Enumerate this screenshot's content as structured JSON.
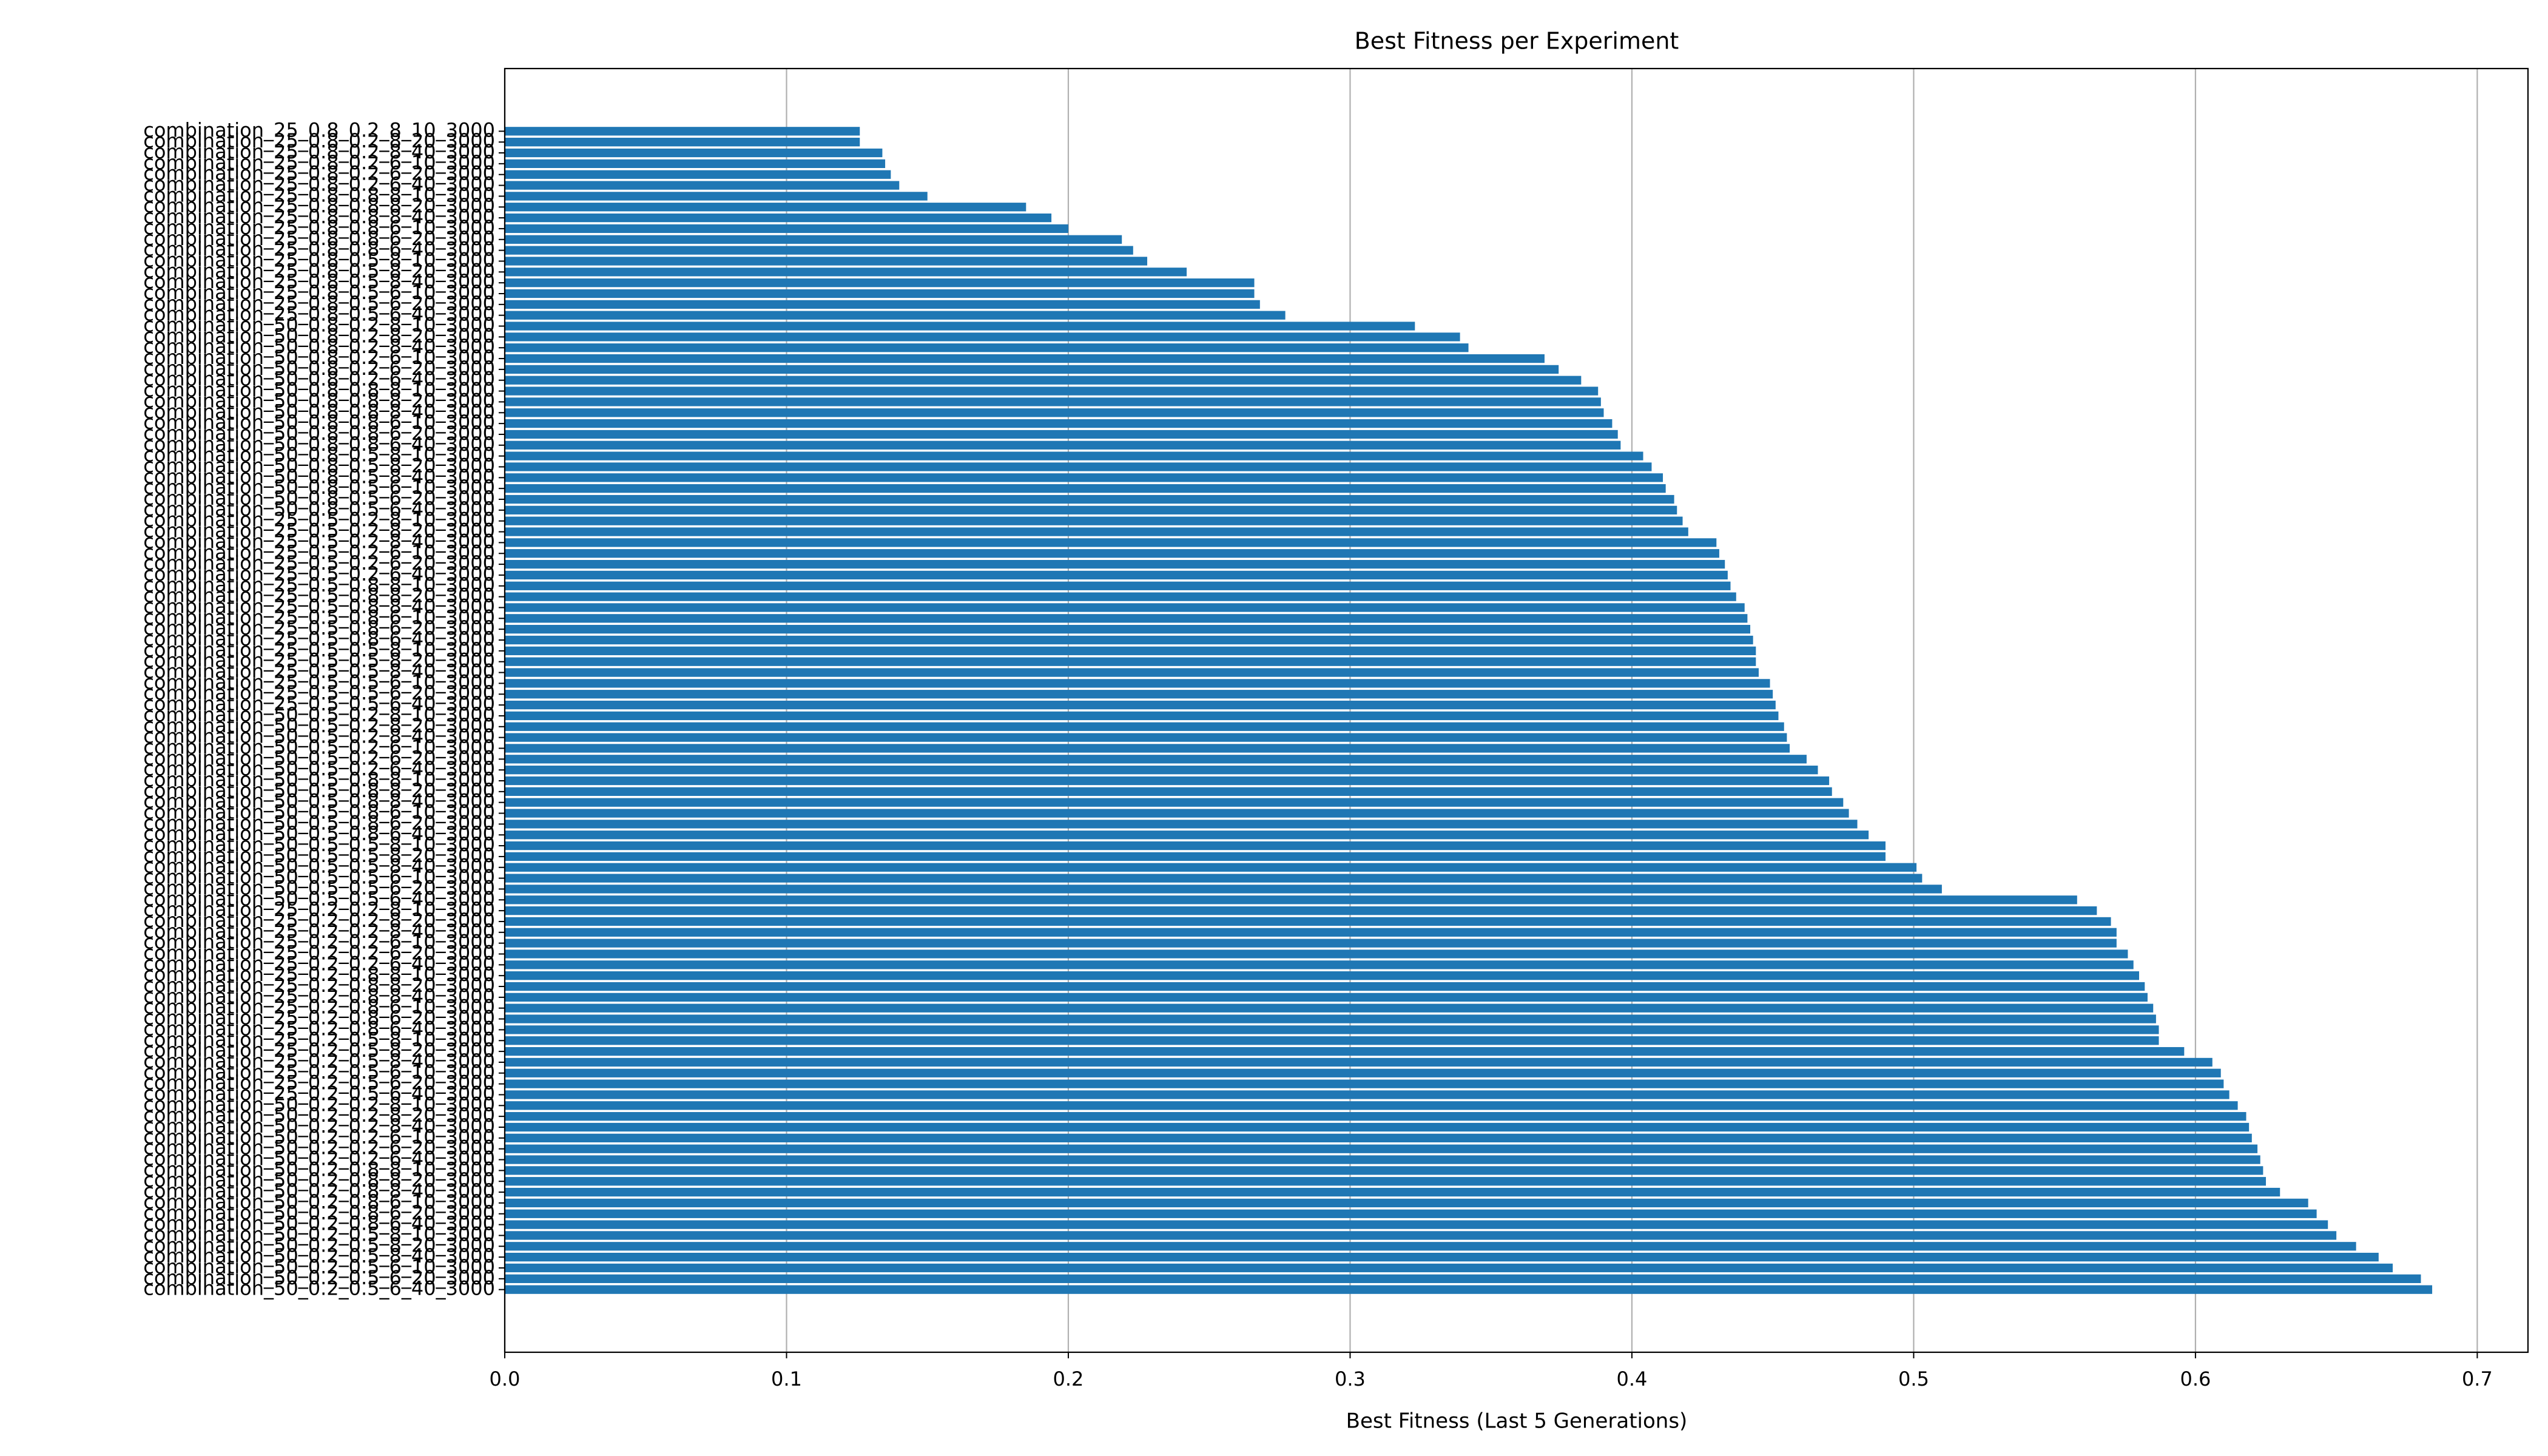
{
  "chart_data": {
    "type": "barh",
    "title": "Best Fitness per Experiment",
    "x_label": "Best Fitness (Last 5 Generations)",
    "color": "#1f77b4",
    "grid": true,
    "xlim": [
      0,
      0.718
    ],
    "xticks": [
      {
        "value": 0,
        "label": "0.0"
      },
      0.1,
      0.2,
      0.3,
      0.4,
      0.5,
      0.6,
      0.7
    ],
    "categories": [
      "combination_25_0.8_0.2_8_10_3000",
      "combination_25_0.8_0.2_8_20_3000",
      "combination_25_0.8_0.2_8_40_3000",
      "combination_25_0.8_0.2_6_10_3000",
      "combination_25_0.8_0.2_6_20_3000",
      "combination_25_0.8_0.2_6_40_3000",
      "combination_25_0.8_0.8_8_10_3000",
      "combination_25_0.8_0.8_8_20_3000",
      "combination_25_0.8_0.8_8_40_3000",
      "combination_25_0.8_0.8_6_10_3000",
      "combination_25_0.8_0.8_6_20_3000",
      "combination_25_0.8_0.8_6_40_3000",
      "combination_25_0.8_0.5_8_10_3000",
      "combination_25_0.8_0.5_8_20_3000",
      "combination_25_0.8_0.5_8_40_3000",
      "combination_25_0.8_0.5_6_10_3000",
      "combination_25_0.8_0.5_6_20_3000",
      "combination_25_0.8_0.5_6_40_3000",
      "combination_50_0.8_0.2_8_10_3000",
      "combination_50_0.8_0.2_8_20_3000",
      "combination_50_0.8_0.2_8_40_3000",
      "combination_50_0.8_0.2_6_10_3000",
      "combination_50_0.8_0.2_6_20_3000",
      "combination_50_0.8_0.2_6_40_3000",
      "combination_50_0.8_0.8_8_10_3000",
      "combination_50_0.8_0.8_8_20_3000",
      "combination_50_0.8_0.8_8_40_3000",
      "combination_50_0.8_0.8_6_10_3000",
      "combination_50_0.8_0.8_6_20_3000",
      "combination_50_0.8_0.8_6_40_3000",
      "combination_50_0.8_0.5_8_10_3000",
      "combination_50_0.8_0.5_8_20_3000",
      "combination_50_0.8_0.5_8_40_3000",
      "combination_50_0.8_0.5_6_10_3000",
      "combination_50_0.8_0.5_6_20_3000",
      "combination_50_0.8_0.5_6_40_3000",
      "combination_25_0.5_0.2_8_10_3000",
      "combination_25_0.5_0.2_8_20_3000",
      "combination_25_0.5_0.2_8_40_3000",
      "combination_25_0.5_0.2_6_10_3000",
      "combination_25_0.5_0.2_6_20_3000",
      "combination_25_0.5_0.2_6_40_3000",
      "combination_25_0.5_0.8_8_10_3000",
      "combination_25_0.5_0.8_8_20_3000",
      "combination_25_0.5_0.8_8_40_3000",
      "combination_25_0.5_0.8_6_10_3000",
      "combination_25_0.5_0.8_6_20_3000",
      "combination_25_0.5_0.8_6_40_3000",
      "combination_25_0.5_0.5_8_10_3000",
      "combination_25_0.5_0.5_8_20_3000",
      "combination_25_0.5_0.5_8_40_3000",
      "combination_25_0.5_0.5_6_10_3000",
      "combination_25_0.5_0.5_6_20_3000",
      "combination_25_0.5_0.5_6_40_3000",
      "combination_50_0.5_0.2_8_10_3000",
      "combination_50_0.5_0.2_8_20_3000",
      "combination_50_0.5_0.2_8_40_3000",
      "combination_50_0.5_0.2_6_10_3000",
      "combination_50_0.5_0.2_6_20_3000",
      "combination_50_0.5_0.2_6_40_3000",
      "combination_50_0.5_0.8_8_10_3000",
      "combination_50_0.5_0.8_8_20_3000",
      "combination_50_0.5_0.8_8_40_3000",
      "combination_50_0.5_0.8_6_10_3000",
      "combination_50_0.5_0.8_6_20_3000",
      "combination_50_0.5_0.8_6_40_3000",
      "combination_50_0.5_0.5_8_10_3000",
      "combination_50_0.5_0.5_8_20_3000",
      "combination_50_0.5_0.5_8_40_3000",
      "combination_50_0.5_0.5_6_10_3000",
      "combination_50_0.5_0.5_6_20_3000",
      "combination_50_0.5_0.5_6_40_3000",
      "combination_25_0.2_0.2_8_10_3000",
      "combination_25_0.2_0.2_8_20_3000",
      "combination_25_0.2_0.2_8_40_3000",
      "combination_25_0.2_0.2_6_10_3000",
      "combination_25_0.2_0.2_6_20_3000",
      "combination_25_0.2_0.2_6_40_3000",
      "combination_25_0.2_0.8_8_10_3000",
      "combination_25_0.2_0.8_8_20_3000",
      "combination_25_0.2_0.8_8_40_3000",
      "combination_25_0.2_0.8_6_10_3000",
      "combination_25_0.2_0.8_6_20_3000",
      "combination_25_0.2_0.8_6_40_3000",
      "combination_25_0.2_0.5_8_10_3000",
      "combination_25_0.2_0.5_8_20_3000",
      "combination_25_0.2_0.5_8_40_3000",
      "combination_25_0.2_0.5_6_10_3000",
      "combination_25_0.2_0.5_6_20_3000",
      "combination_25_0.2_0.5_6_40_3000",
      "combination_50_0.2_0.2_8_10_3000",
      "combination_50_0.2_0.2_8_20_3000",
      "combination_50_0.2_0.2_8_40_3000",
      "combination_50_0.2_0.2_6_10_3000",
      "combination_50_0.2_0.2_6_20_3000",
      "combination_50_0.2_0.2_6_40_3000",
      "combination_50_0.2_0.8_8_10_3000",
      "combination_50_0.2_0.8_8_20_3000",
      "combination_50_0.2_0.8_8_40_3000",
      "combination_50_0.2_0.8_6_10_3000",
      "combination_50_0.2_0.8_6_20_3000",
      "combination_50_0.2_0.8_6_40_3000",
      "combination_50_0.2_0.5_8_10_3000",
      "combination_50_0.2_0.5_8_20_3000",
      "combination_50_0.2_0.5_8_40_3000",
      "combination_50_0.2_0.5_6_10_3000",
      "combination_50_0.2_0.5_6_20_3000",
      "combination_50_0.2_0.5_6_40_3000"
    ],
    "values": [
      0.126,
      0.126,
      0.134,
      0.135,
      0.137,
      0.14,
      0.15,
      0.185,
      0.194,
      0.2,
      0.219,
      0.223,
      0.228,
      0.242,
      0.266,
      0.266,
      0.268,
      0.277,
      0.323,
      0.339,
      0.342,
      0.369,
      0.374,
      0.382,
      0.388,
      0.389,
      0.39,
      0.393,
      0.395,
      0.396,
      0.404,
      0.407,
      0.411,
      0.412,
      0.415,
      0.416,
      0.418,
      0.42,
      0.43,
      0.431,
      0.433,
      0.434,
      0.435,
      0.437,
      0.44,
      0.441,
      0.442,
      0.443,
      0.444,
      0.444,
      0.445,
      0.449,
      0.45,
      0.451,
      0.452,
      0.454,
      0.455,
      0.456,
      0.462,
      0.466,
      0.47,
      0.471,
      0.475,
      0.477,
      0.48,
      0.484,
      0.49,
      0.49,
      0.501,
      0.503,
      0.51,
      0.558,
      0.565,
      0.57,
      0.572,
      0.572,
      0.576,
      0.578,
      0.58,
      0.582,
      0.583,
      0.585,
      0.586,
      0.587,
      0.587,
      0.596,
      0.606,
      0.609,
      0.61,
      0.612,
      0.615,
      0.618,
      0.619,
      0.62,
      0.622,
      0.623,
      0.624,
      0.625,
      0.63,
      0.64,
      0.643,
      0.647,
      0.65,
      0.657,
      0.665,
      0.67,
      0.68,
      0.684
    ]
  }
}
